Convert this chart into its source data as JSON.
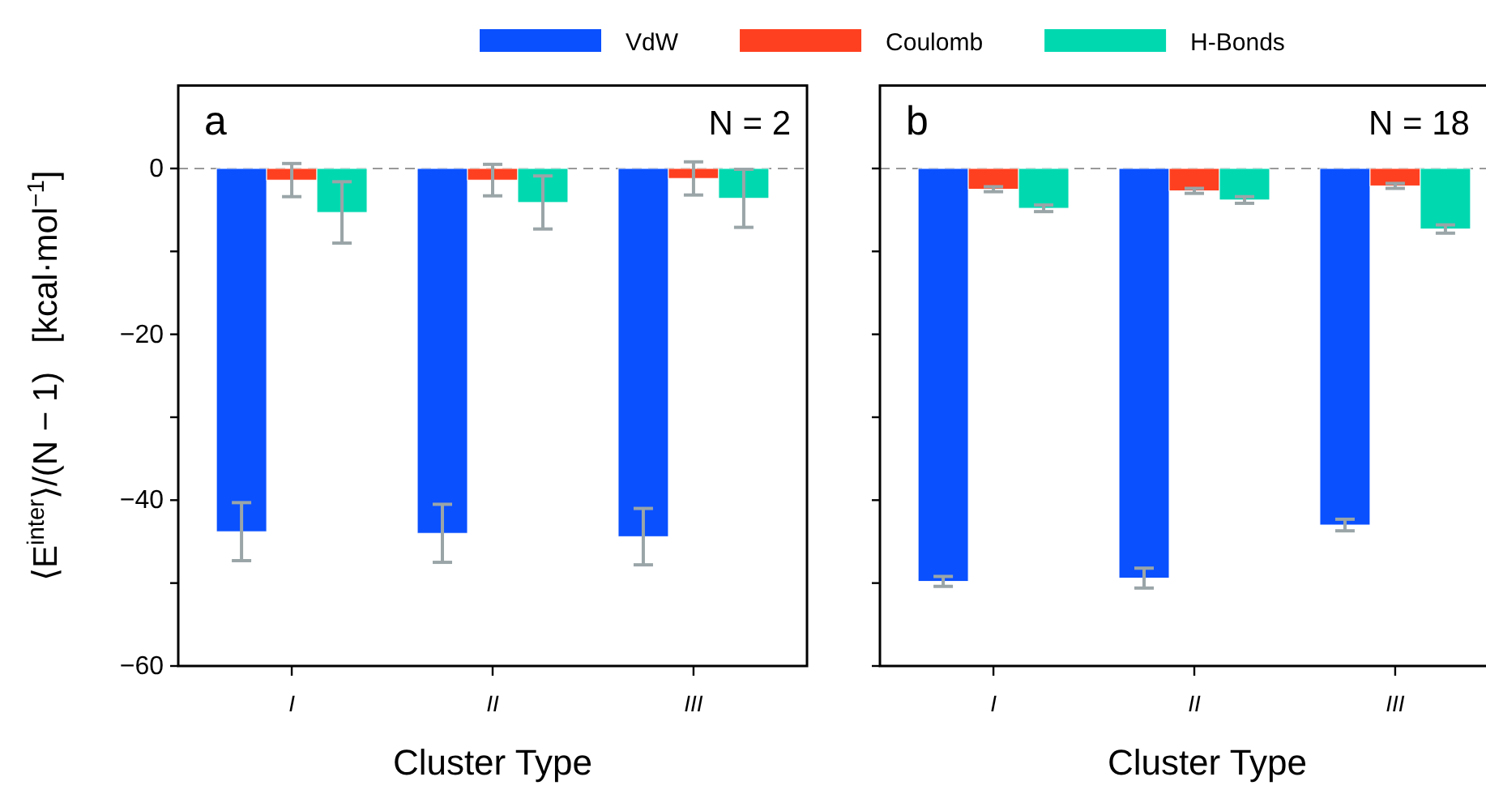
{
  "chart_data": [
    {
      "type": "bar",
      "xlabel": "Cluster Type",
      "ylabel": "⟨E$^{inter}$⟩/(N − 1)   [kcal·mol$^{−1}$]",
      "categories": [
        "I",
        "II",
        "III"
      ],
      "series": [
        {
          "name": "VdW",
          "color": "#0a50ff",
          "values": [
            -43.8,
            -44.0,
            -44.4
          ],
          "errors": [
            3.5,
            3.5,
            3.4
          ]
        },
        {
          "name": "Coulomb",
          "color": "#ff4020",
          "values": [
            -1.4,
            -1.4,
            -1.2
          ],
          "errors": [
            2.0,
            1.9,
            2.0
          ]
        },
        {
          "name": "H-Bonds",
          "color": "#00d8b0",
          "values": [
            -5.3,
            -4.1,
            -3.6
          ],
          "errors": [
            3.7,
            3.2,
            3.5
          ]
        }
      ],
      "ylim": [
        -60,
        10
      ],
      "yticks": [
        0,
        -20,
        -40,
        -60,
        {
          "value": -10,
          "label": null
        },
        {
          "value": -30,
          "label": null
        },
        {
          "value": -50,
          "label": null
        }
      ],
      "ref_lines": [
        {
          "axis": "y",
          "value": 0,
          "color": "#999999",
          "line_style": "dashed"
        }
      ],
      "annotations": [
        "a",
        "N = 2"
      ],
      "legend": "top"
    },
    {
      "type": "bar",
      "xlabel": "Cluster Type",
      "categories": [
        "I",
        "II",
        "III"
      ],
      "series": [
        {
          "color": "#0a50ff",
          "values": [
            -49.8,
            -49.4,
            -43.0
          ],
          "errors": [
            0.6,
            1.2,
            0.7
          ]
        },
        {
          "color": "#ff4020",
          "values": [
            -2.5,
            -2.7,
            -2.1
          ],
          "errors": [
            0.3,
            0.3,
            0.3
          ]
        },
        {
          "color": "#00d8b0",
          "values": [
            -4.8,
            -3.8,
            -7.3
          ],
          "errors": [
            0.4,
            0.4,
            0.5
          ]
        }
      ],
      "ylim": [
        -60,
        10
      ],
      "yticks": [
        {
          "value": 0,
          "label": null
        },
        {
          "value": -20,
          "label": null
        },
        {
          "value": -40,
          "label": null
        },
        {
          "value": -60,
          "label": null
        },
        {
          "value": -10,
          "label": null
        },
        {
          "value": -30,
          "label": null
        },
        {
          "value": -50,
          "label": null
        }
      ],
      "ref_lines": [
        {
          "axis": "y",
          "value": 0,
          "color": "#999999",
          "line_style": "dashed"
        }
      ],
      "annotations": [
        "b",
        "N = 18"
      ],
      "tick_labels": "x"
    }
  ]
}
